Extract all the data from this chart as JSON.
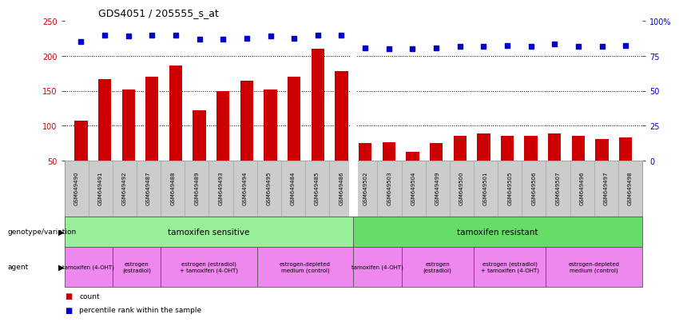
{
  "title": "GDS4051 / 205555_s_at",
  "samples": [
    "GSM649490",
    "GSM649491",
    "GSM649492",
    "GSM649487",
    "GSM649488",
    "GSM649489",
    "GSM649493",
    "GSM649494",
    "GSM649495",
    "GSM649484",
    "GSM649485",
    "GSM649486",
    "GSM649502",
    "GSM649503",
    "GSM649504",
    "GSM649499",
    "GSM649500",
    "GSM649501",
    "GSM649505",
    "GSM649506",
    "GSM649507",
    "GSM649496",
    "GSM649497",
    "GSM649498"
  ],
  "counts": [
    107,
    167,
    152,
    170,
    186,
    122,
    150,
    165,
    152,
    170,
    210,
    178,
    75,
    76,
    63,
    75,
    86,
    89,
    86,
    86,
    89,
    86,
    81,
    83
  ],
  "percentiles_left": [
    221,
    230,
    229,
    230,
    230,
    224,
    224,
    225,
    229,
    225,
    230,
    230,
    211,
    210,
    210,
    211,
    214,
    214,
    215,
    214,
    217,
    214,
    214,
    215
  ],
  "bar_color": "#cc0000",
  "dot_color": "#0000cc",
  "ylim_left": [
    50,
    250
  ],
  "yticks_left": [
    50,
    100,
    150,
    200,
    250
  ],
  "yticks_right": [
    0,
    25,
    50,
    75,
    100
  ],
  "ytick_labels_right": [
    "0",
    "25",
    "50",
    "75",
    "100%"
  ],
  "hlines": [
    100,
    150,
    200
  ],
  "genotype_groups": [
    {
      "label": "tamoxifen sensitive",
      "start": 0,
      "end": 11,
      "color": "#99ee99"
    },
    {
      "label": "tamoxifen resistant",
      "start": 12,
      "end": 23,
      "color": "#66dd66"
    }
  ],
  "agent_groups": [
    {
      "label": "tamoxifen (4-OHT)",
      "start": 0,
      "end": 1
    },
    {
      "label": "estrogen\n(estradiol)",
      "start": 2,
      "end": 3
    },
    {
      "label": "estrogen (estradiol)\n+ tamoxifen (4-OHT)",
      "start": 4,
      "end": 7
    },
    {
      "label": "estrogen-depleted\nmedium (control)",
      "start": 8,
      "end": 11
    },
    {
      "label": "tamoxifen (4-OHT)",
      "start": 12,
      "end": 13
    },
    {
      "label": "estrogen\n(estradiol)",
      "start": 14,
      "end": 16
    },
    {
      "label": "estrogen (estradiol)\n+ tamoxifen (4-OHT)",
      "start": 17,
      "end": 19
    },
    {
      "label": "estrogen-depleted\nmedium (control)",
      "start": 20,
      "end": 23
    }
  ],
  "agent_color": "#ee88ee",
  "tick_area_color": "#cccccc",
  "legend_count_label": "count",
  "legend_pct_label": "percentile rank within the sample"
}
